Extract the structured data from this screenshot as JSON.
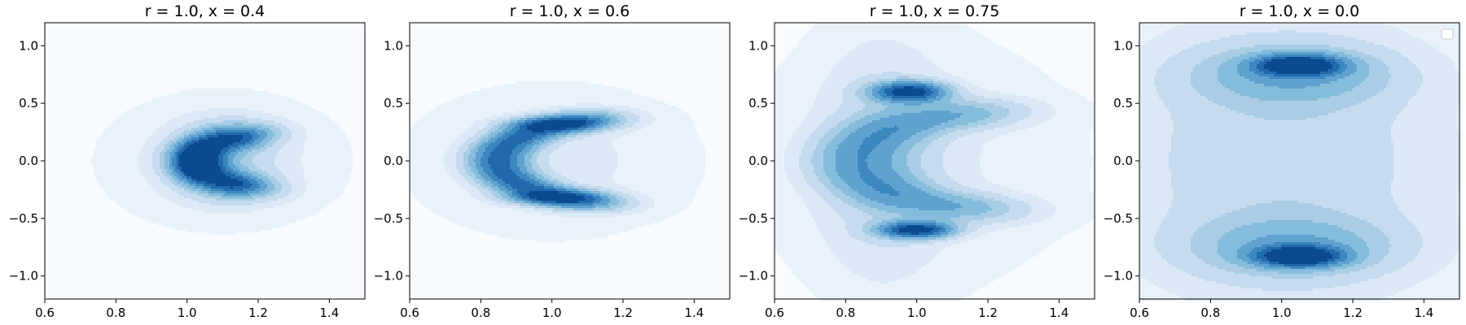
{
  "chart_data": [
    {
      "type": "contour",
      "title": "r = 1.0, x = 0.4",
      "xlim": [
        0.6,
        1.5
      ],
      "ylim": [
        -1.2,
        1.2
      ],
      "xticks": [
        "0.6",
        "0.8",
        "1.0",
        "1.2",
        "1.4"
      ],
      "yticks": [
        "−1.0",
        "−0.5",
        "0.0",
        "0.5",
        "1.0"
      ],
      "density_shape": "crescent opening to the right",
      "peak_regions": [
        {
          "x": 1.03,
          "y": 0.0,
          "level": 8
        },
        {
          "x": 1.1,
          "y": 0.2,
          "level": 5
        },
        {
          "x": 1.1,
          "y": -0.2,
          "level": 5
        }
      ],
      "legend": false,
      "grid": false
    },
    {
      "type": "contour",
      "title": "r = 1.0, x = 0.6",
      "xlim": [
        0.6,
        1.5
      ],
      "ylim": [
        -1.2,
        1.2
      ],
      "xticks": [
        "0.6",
        "0.8",
        "1.0",
        "1.2",
        "1.4"
      ],
      "yticks": [
        "−1.0",
        "−0.5",
        "0.0",
        "0.5",
        "1.0"
      ],
      "density_shape": "wide crescent opening to the right",
      "peak_regions": [
        {
          "x": 1.0,
          "y": 0.32,
          "level": 8
        },
        {
          "x": 1.0,
          "y": -0.32,
          "level": 8
        },
        {
          "x": 0.87,
          "y": 0.0,
          "level": 7
        }
      ],
      "legend": false,
      "grid": false
    },
    {
      "type": "contour",
      "title": "r = 1.0, x = 0.75",
      "xlim": [
        0.6,
        1.5
      ],
      "ylim": [
        -1.2,
        1.2
      ],
      "xticks": [
        "0.6",
        "0.8",
        "1.0",
        "1.2",
        "1.4"
      ],
      "yticks": [
        "−1.0",
        "−0.5",
        "0.0",
        "0.5",
        "1.0"
      ],
      "density_shape": "C-shape with two lobes at the tips",
      "peak_regions": [
        {
          "x": 0.97,
          "y": 0.6,
          "level": 9
        },
        {
          "x": 0.99,
          "y": -0.6,
          "level": 9
        }
      ],
      "legend": false,
      "grid": false
    },
    {
      "type": "contour",
      "title": "r = 1.0, x = 0.0",
      "xlim": [
        0.6,
        1.5
      ],
      "ylim": [
        -1.2,
        1.2
      ],
      "xticks": [
        "0.6",
        "0.8",
        "1.0",
        "1.2",
        "1.4"
      ],
      "yticks": [
        "−1.0",
        "−0.5",
        "0.0",
        "0.5",
        "1.0"
      ],
      "density_shape": "two separated lobes at top and bottom",
      "peak_regions": [
        {
          "x": 1.04,
          "y": 0.83,
          "level": 9
        },
        {
          "x": 1.04,
          "y": -0.83,
          "level": 9
        }
      ],
      "legend": true,
      "legend_position": "upper right",
      "grid": false
    }
  ],
  "colors": {
    "colormap": "Blues",
    "background": "#f7fbff",
    "levels": [
      "#f7fbff",
      "#e9f2fb",
      "#dbe9f6",
      "#c6dbef",
      "#a8cde4",
      "#85bcdc",
      "#5fa2d0",
      "#3d87c0",
      "#2169ac",
      "#0b4a8e"
    ]
  }
}
